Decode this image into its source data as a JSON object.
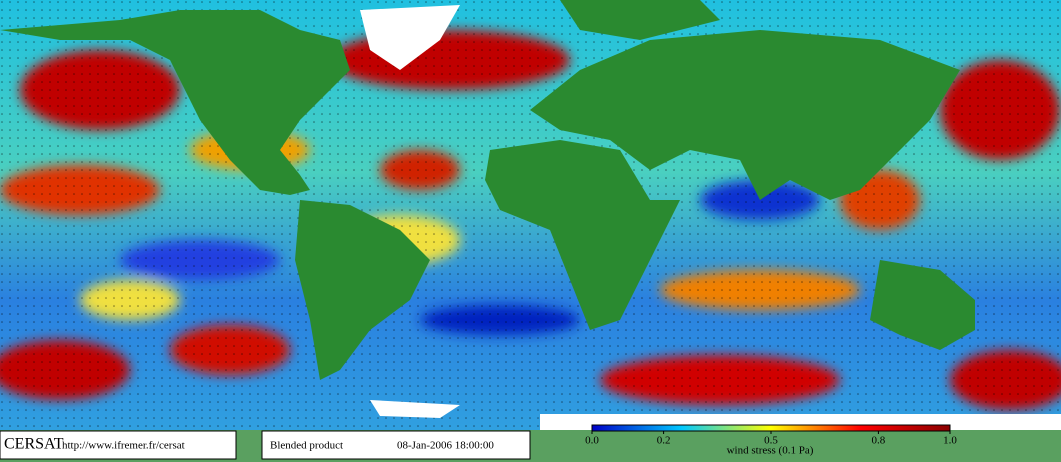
{
  "footer": {
    "logo": "CERSAT",
    "url": "http://www.ifremer.fr/cersat",
    "product": "Blended product",
    "datetime": "08-Jan-2006 18:00:00"
  },
  "colorbar": {
    "label": "wind stress (0.1 Pa)",
    "lim": [
      0,
      1
    ],
    "ticks": [
      {
        "value": 0,
        "label": "0.0"
      },
      0.2,
      0.5,
      0.8,
      {
        "value": 1,
        "label": "1.0"
      }
    ],
    "colors": [
      "#0000c8",
      "#00c8ff",
      "#ffff00",
      "#ff0000",
      "#8b0000"
    ]
  }
}
